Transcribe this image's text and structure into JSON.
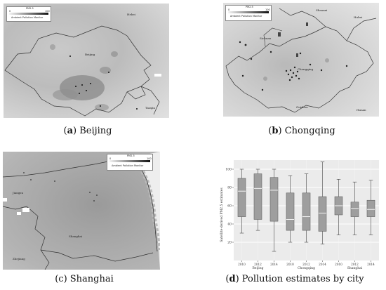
{
  "panels": {
    "a": {
      "letter": "a",
      "city": "Beijing"
    },
    "b": {
      "letter": "b",
      "city": "Chongqing"
    },
    "c": {
      "letter": "c",
      "city": "Shanghai"
    },
    "d": {
      "letter": "d",
      "title": "Pollution estimates by city"
    }
  },
  "legend": {
    "title": "PM2.5",
    "min": "0",
    "max": "100",
    "item": "Ambient Pollution Monitor"
  },
  "maps": {
    "beijing": {
      "labels": [
        "Hebei",
        "Beijing",
        "Tianjin"
      ]
    },
    "chongqing": {
      "labels": [
        "Shaanxi",
        "Hubei",
        "Sichuan",
        "Chongqing",
        "Guizhou",
        "Hunan"
      ]
    },
    "shanghai": {
      "labels": [
        "Jiangsu",
        "Shanghai",
        "Zhejiang"
      ]
    }
  },
  "chart_data": {
    "type": "boxplot",
    "ylabel": "Satellite-derived PM2.5 estimates",
    "ylim": [
      0,
      110
    ],
    "yticks": [
      20,
      40,
      60,
      80,
      100
    ],
    "groups": [
      {
        "city": "Beijing",
        "years": [
          "2010",
          "2012",
          "2014"
        ]
      },
      {
        "city": "Chongqing",
        "years": [
          "2010",
          "2012",
          "2014"
        ]
      },
      {
        "city": "Shanghai",
        "years": [
          "2010",
          "2012",
          "2014"
        ]
      }
    ],
    "boxes": [
      {
        "city": "Beijing",
        "year": "2010",
        "min": 30,
        "q1": 48,
        "median": 76,
        "q3": 90,
        "max": 100
      },
      {
        "city": "Beijing",
        "year": "2012",
        "min": 33,
        "q1": 45,
        "median": 79,
        "q3": 95,
        "max": 100
      },
      {
        "city": "Beijing",
        "year": "2014",
        "min": 10,
        "q1": 43,
        "median": 77,
        "q3": 91,
        "max": 100
      },
      {
        "city": "Chongqing",
        "year": "2010",
        "min": 20,
        "q1": 33,
        "median": 45,
        "q3": 74,
        "max": 93
      },
      {
        "city": "Chongqing",
        "year": "2012",
        "min": 20,
        "q1": 33,
        "median": 48,
        "q3": 74,
        "max": 95
      },
      {
        "city": "Chongqing",
        "year": "2014",
        "min": 18,
        "q1": 32,
        "median": 52,
        "q3": 70,
        "max": 108
      },
      {
        "city": "Shanghai",
        "year": "2010",
        "min": 28,
        "q1": 50,
        "median": 60,
        "q3": 70,
        "max": 89
      },
      {
        "city": "Shanghai",
        "year": "2012",
        "min": 28,
        "q1": 48,
        "median": 57,
        "q3": 64,
        "max": 86
      },
      {
        "city": "Shanghai",
        "year": "2014",
        "min": 28,
        "q1": 48,
        "median": 56,
        "q3": 66,
        "max": 88
      }
    ]
  }
}
